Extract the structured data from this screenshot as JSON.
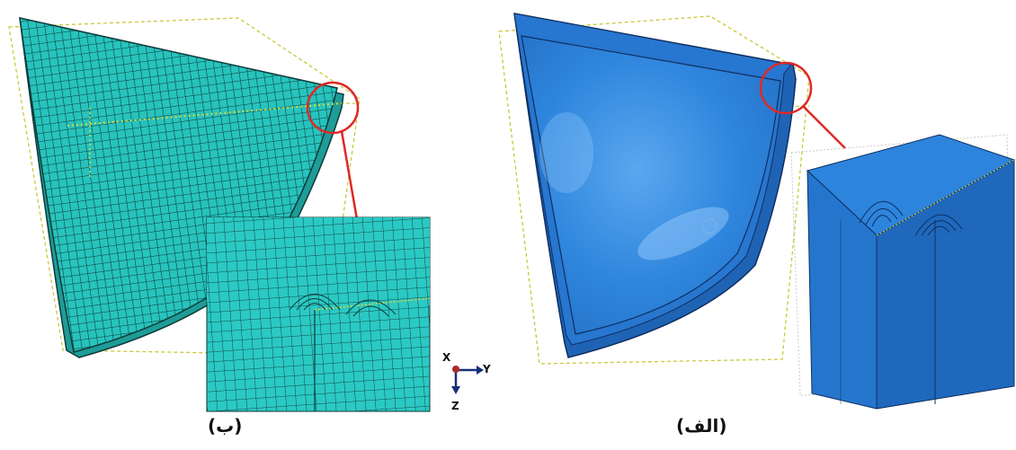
{
  "figure": {
    "captions": {
      "left": "(ب)",
      "right": "(الف)"
    },
    "triad": {
      "x": "X",
      "y": "Y",
      "z": "Z"
    },
    "colors": {
      "mesh_fill": "#27c3bd",
      "mesh_line": "#0d3b3a",
      "solid_fill": "#2f86dd",
      "solid_dark": "#1f63b4",
      "highlight_circle": "#e02828",
      "datum_lines": "#c9c93a"
    }
  }
}
